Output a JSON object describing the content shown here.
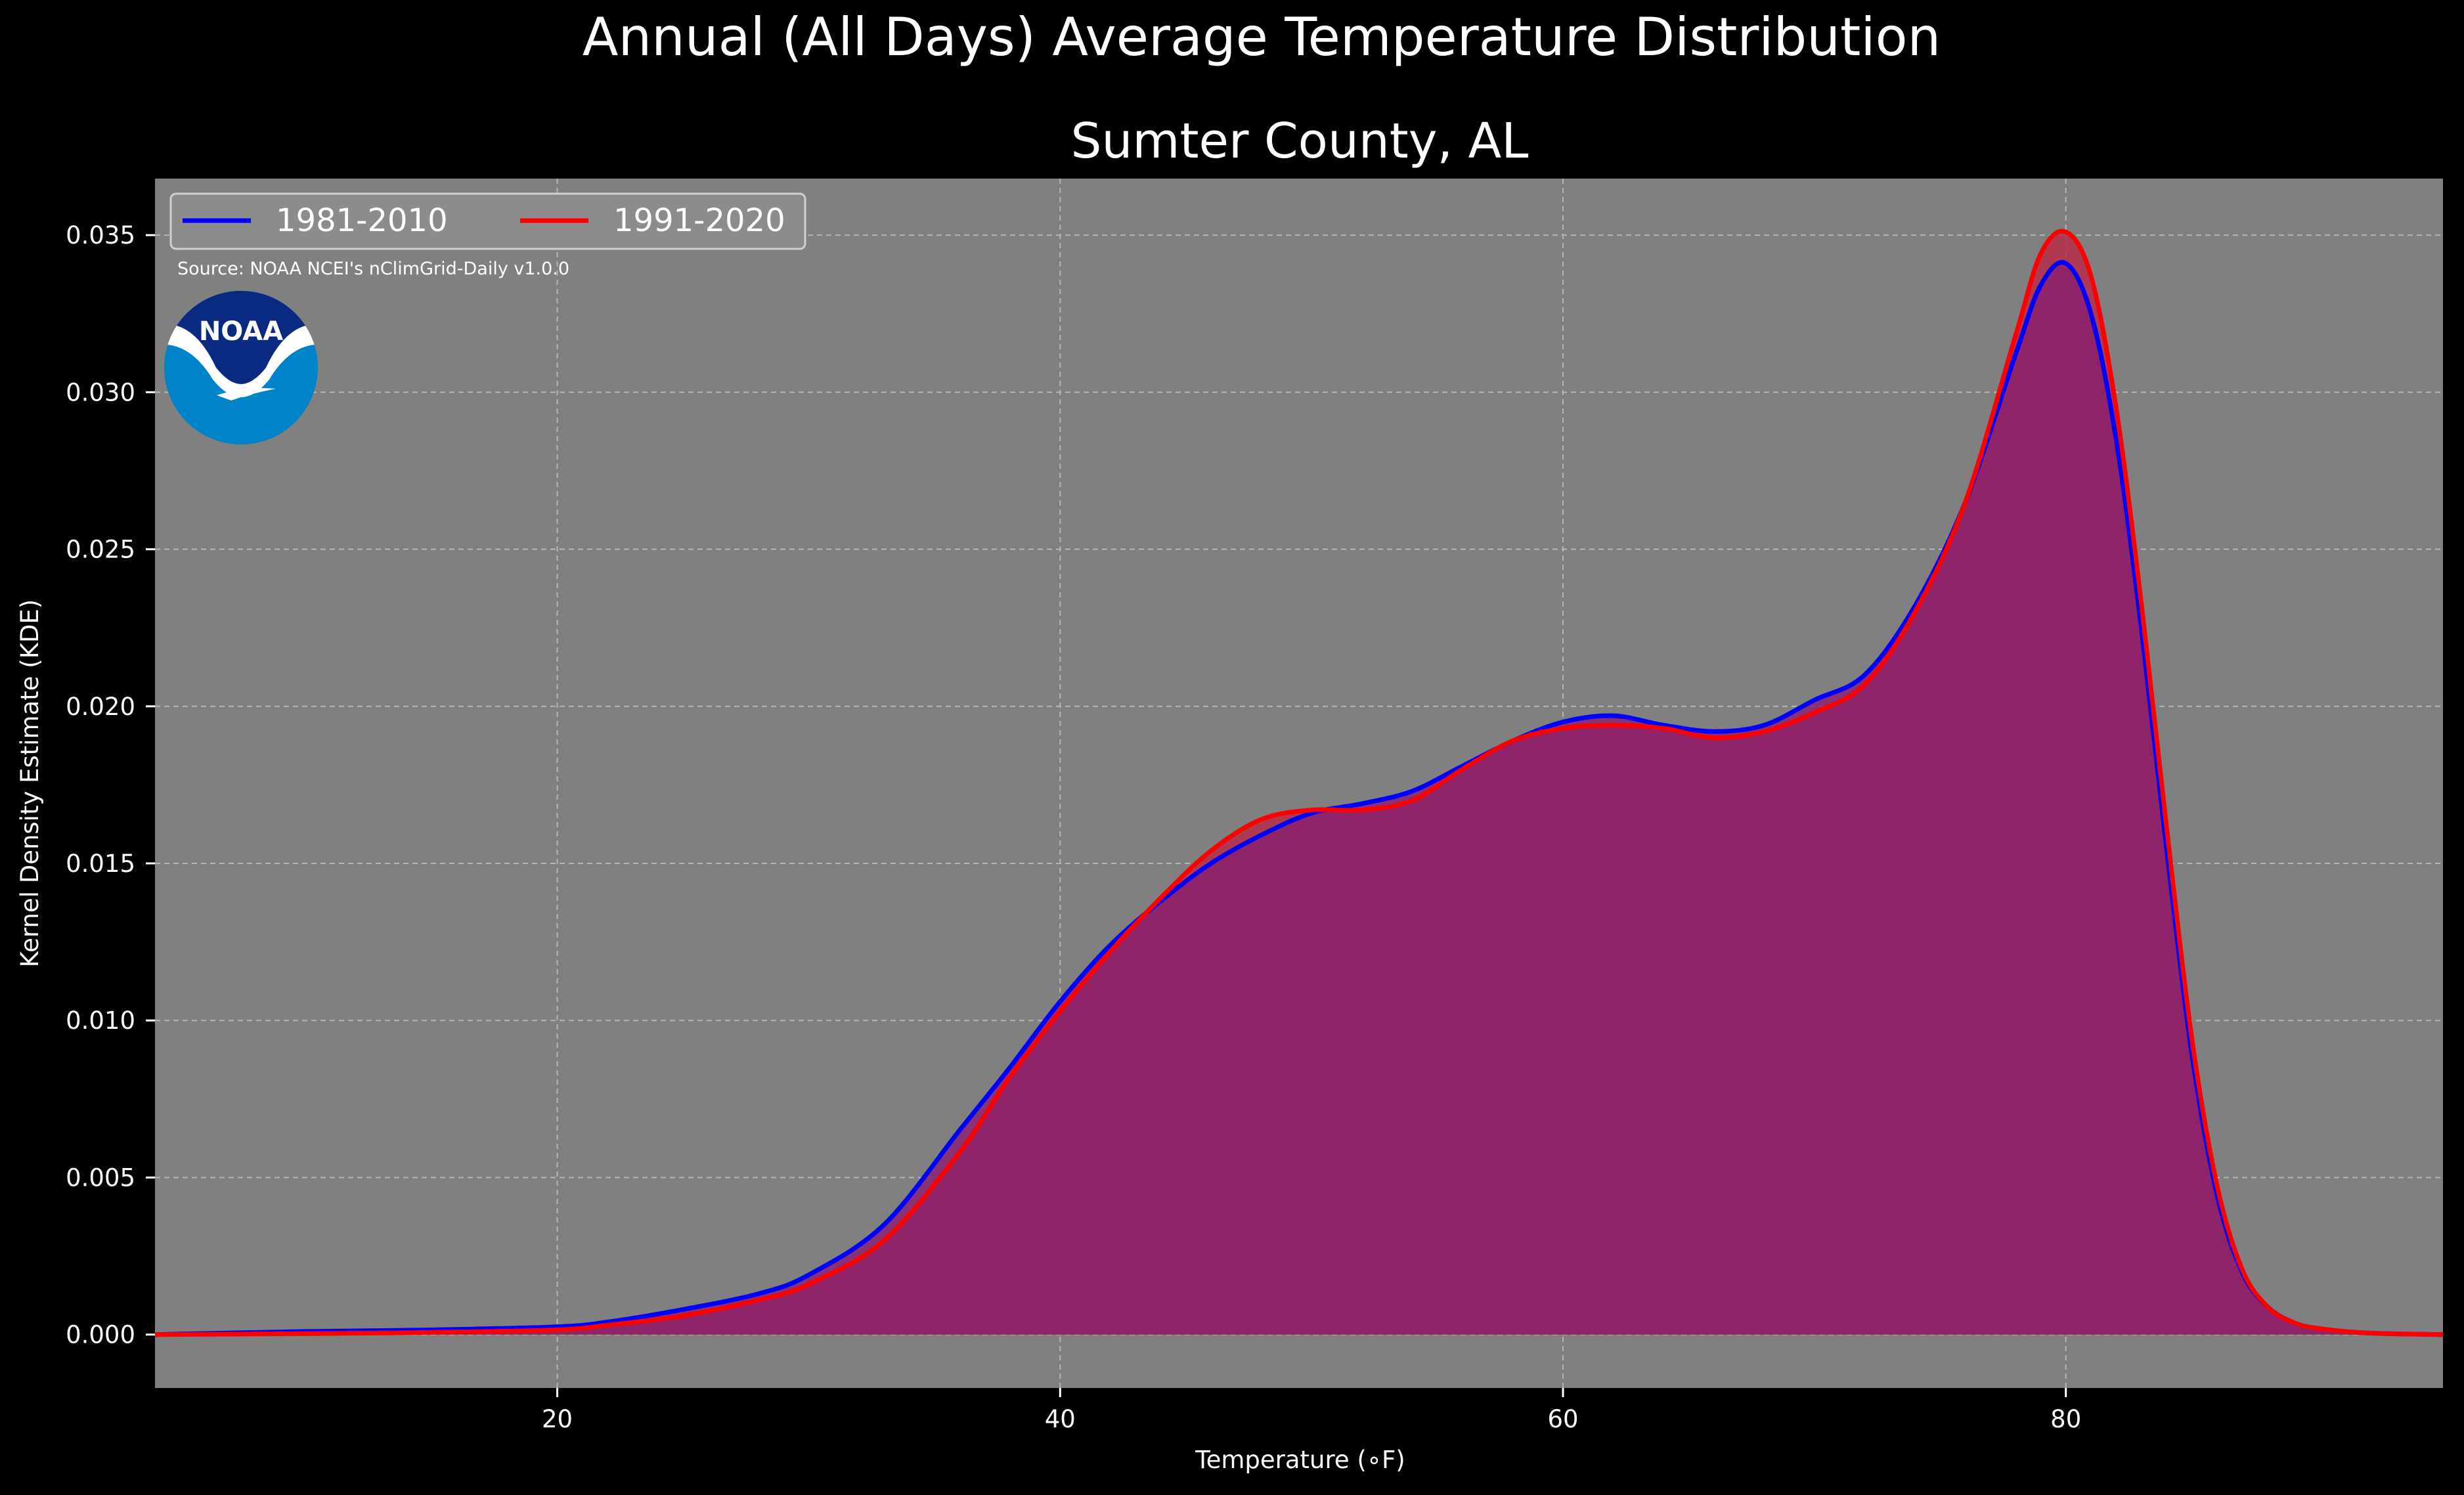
{
  "chart_data": {
    "type": "area",
    "suptitle": "Annual (All Days) Average Temperature Distribution",
    "title": "Sumter County, AL",
    "xlabel": "Temperature ($^\\circ$F)",
    "xlabel_display": "Temperature (∘F)",
    "ylabel": "Kernel Density Estimate (KDE)",
    "xlim": [
      4,
      95
    ],
    "ylim": [
      -0.0017,
      0.0368
    ],
    "xticks": [
      20,
      40,
      60,
      80
    ],
    "xtick_labels": [
      "20",
      "40",
      "60",
      "80"
    ],
    "yticks": [
      0.0,
      0.005,
      0.01,
      0.015,
      0.02,
      0.025,
      0.03,
      0.035
    ],
    "ytick_labels": [
      "0.000",
      "0.005",
      "0.010",
      "0.015",
      "0.020",
      "0.025",
      "0.030",
      "0.035"
    ],
    "grid": true,
    "legend_position": "top-left",
    "source_note": "Source: NOAA NCEI's nClimGrid-Daily v1.0.0",
    "logo_text": "NOAA",
    "colors": {
      "background": "#000000",
      "axes_face": "#808080",
      "fill": "#9e1f5e",
      "grid": "#b5b5b5",
      "series_1981": "#0000ff",
      "series_1991": "#ff0000",
      "logo_dark": "#0a2a82",
      "logo_light": "#0083c9"
    },
    "series": [
      {
        "name": "1981-2010",
        "color": "#0000ff",
        "x": [
          4,
          10,
          15,
          20,
          22,
          25,
          28,
          30,
          33,
          36,
          38,
          40,
          42,
          44,
          46,
          48,
          50,
          52,
          54,
          56,
          58,
          60,
          62,
          64,
          66,
          68,
          70,
          72,
          74,
          76,
          78,
          79,
          80,
          81,
          82,
          83,
          84,
          85,
          86,
          87,
          88,
          89,
          90,
          92,
          95
        ],
        "y": [
          0.0,
          0.0001,
          0.00015,
          0.00025,
          0.0004,
          0.0008,
          0.0013,
          0.0019,
          0.0035,
          0.0065,
          0.0085,
          0.0106,
          0.0124,
          0.0138,
          0.015,
          0.0159,
          0.0166,
          0.0169,
          0.0173,
          0.0181,
          0.0189,
          0.0195,
          0.0197,
          0.0194,
          0.0192,
          0.0194,
          0.0202,
          0.021,
          0.0232,
          0.0265,
          0.0312,
          0.0334,
          0.0341,
          0.0325,
          0.0285,
          0.0225,
          0.0155,
          0.009,
          0.0045,
          0.002,
          0.0009,
          0.0004,
          0.0002,
          5e-05,
          0.0
        ]
      },
      {
        "name": "1991-2020",
        "color": "#ff0000",
        "x": [
          4,
          10,
          15,
          20,
          22,
          25,
          28,
          30,
          33,
          36,
          38,
          40,
          42,
          44,
          46,
          48,
          50,
          52,
          54,
          56,
          58,
          60,
          62,
          64,
          66,
          68,
          70,
          72,
          74,
          76,
          78,
          79,
          80,
          81,
          82,
          83,
          84,
          85,
          86,
          87,
          88,
          89,
          90,
          92,
          95
        ],
        "y": [
          0.0,
          3e-05,
          7e-05,
          0.00015,
          0.0003,
          0.0006,
          0.0011,
          0.0016,
          0.003,
          0.0058,
          0.0082,
          0.0103,
          0.0122,
          0.0139,
          0.0154,
          0.0164,
          0.0167,
          0.0167,
          0.017,
          0.018,
          0.0189,
          0.0193,
          0.0194,
          0.0193,
          0.019,
          0.0192,
          0.0198,
          0.0207,
          0.023,
          0.0265,
          0.0318,
          0.0344,
          0.0351,
          0.0337,
          0.0295,
          0.0233,
          0.0162,
          0.0095,
          0.0048,
          0.0021,
          0.0009,
          0.0004,
          0.0002,
          5e-05,
          0.0
        ]
      }
    ]
  }
}
